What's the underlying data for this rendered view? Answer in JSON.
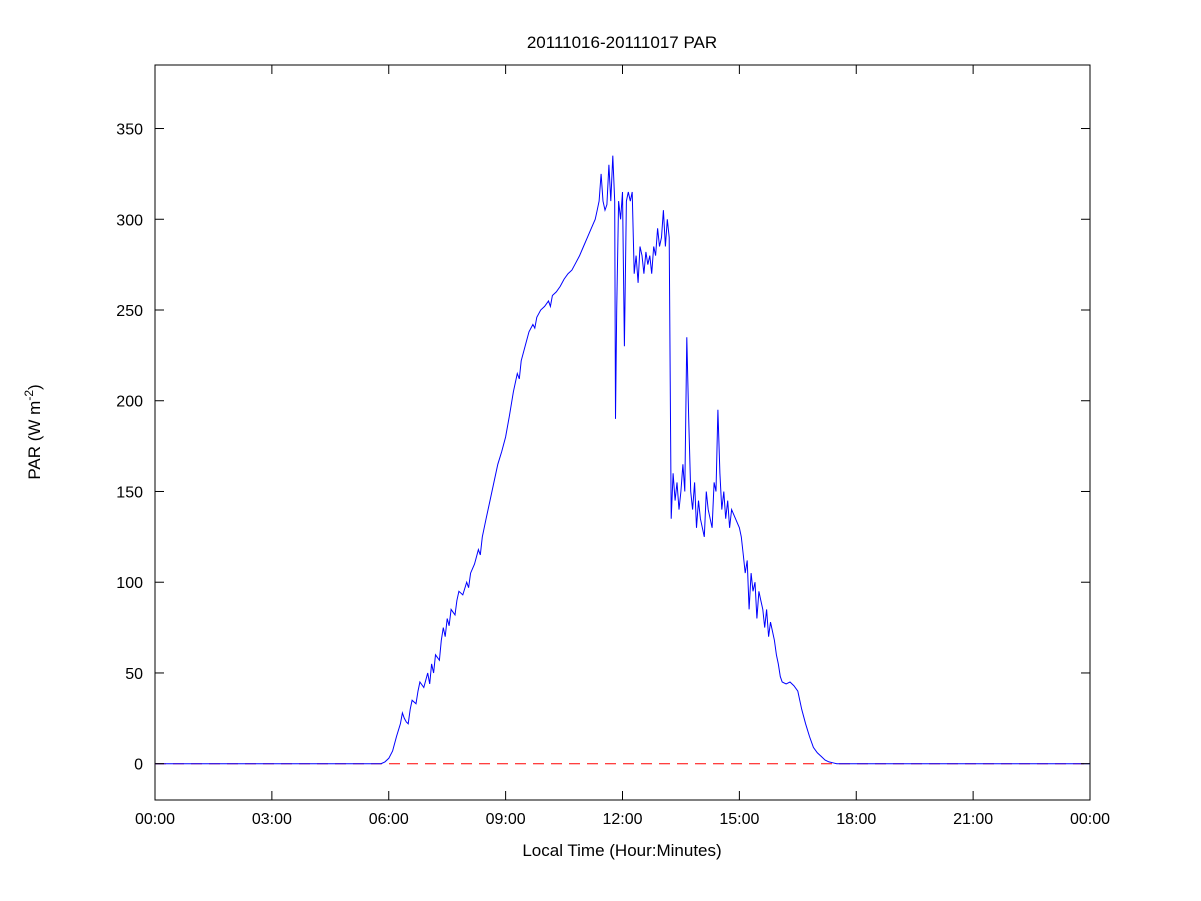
{
  "figure": {
    "title": "20111016-20111017 PAR",
    "xlabel": "Local Time (Hour:Minutes)",
    "ylabel_prefix": "PAR (W m",
    "ylabel_sup": "-2",
    "ylabel_suffix": ")"
  },
  "colors": {
    "series_line": "#0000ff",
    "zero_baseline": "#ff0000",
    "axis": "#000000",
    "background": "#ffffff"
  },
  "chart_data": {
    "type": "line",
    "title": "20111016-20111017 PAR",
    "xlabel": "Local Time (Hour:Minutes)",
    "ylabel": "PAR (W m^-2)",
    "xlim": [
      0,
      24
    ],
    "ylim": [
      -20,
      385
    ],
    "xticks": [
      0,
      3,
      6,
      9,
      12,
      15,
      18,
      21,
      24
    ],
    "xticklabels": [
      "00:00",
      "03:00",
      "06:00",
      "09:00",
      "12:00",
      "15:00",
      "18:00",
      "21:00",
      "00:00"
    ],
    "yticks": [
      0,
      50,
      100,
      150,
      200,
      250,
      300,
      350
    ],
    "grid": false,
    "legend": null,
    "series": [
      {
        "name": "PAR",
        "color": "#0000ff",
        "style": "solid",
        "x": [
          0,
          1,
          2,
          3,
          4,
          5,
          5.5,
          5.8,
          5.9,
          6.0,
          6.1,
          6.2,
          6.3,
          6.35,
          6.4,
          6.45,
          6.5,
          6.55,
          6.6,
          6.7,
          6.75,
          6.8,
          6.9,
          7.0,
          7.05,
          7.1,
          7.15,
          7.2,
          7.3,
          7.35,
          7.4,
          7.45,
          7.5,
          7.55,
          7.6,
          7.7,
          7.75,
          7.8,
          7.9,
          8.0,
          8.05,
          8.1,
          8.2,
          8.3,
          8.35,
          8.4,
          8.5,
          8.6,
          8.7,
          8.8,
          8.9,
          9.0,
          9.1,
          9.2,
          9.3,
          9.35,
          9.4,
          9.5,
          9.6,
          9.7,
          9.75,
          9.8,
          9.9,
          10.0,
          10.1,
          10.15,
          10.2,
          10.3,
          10.4,
          10.5,
          10.6,
          10.7,
          10.8,
          10.9,
          11.0,
          11.1,
          11.2,
          11.3,
          11.35,
          11.4,
          11.45,
          11.5,
          11.55,
          11.6,
          11.65,
          11.7,
          11.75,
          11.8,
          11.82,
          11.85,
          11.9,
          11.95,
          12.0,
          12.05,
          12.1,
          12.15,
          12.2,
          12.25,
          12.3,
          12.35,
          12.4,
          12.45,
          12.5,
          12.55,
          12.6,
          12.65,
          12.7,
          12.75,
          12.8,
          12.85,
          12.9,
          12.95,
          13.0,
          13.05,
          13.1,
          13.15,
          13.2,
          13.25,
          13.3,
          13.35,
          13.4,
          13.45,
          13.5,
          13.55,
          13.6,
          13.65,
          13.7,
          13.75,
          13.8,
          13.85,
          13.9,
          13.95,
          14.0,
          14.1,
          14.15,
          14.2,
          14.3,
          14.35,
          14.4,
          14.45,
          14.5,
          14.55,
          14.6,
          14.65,
          14.7,
          14.75,
          14.8,
          14.9,
          15.0,
          15.05,
          15.1,
          15.15,
          15.2,
          15.25,
          15.3,
          15.35,
          15.4,
          15.45,
          15.5,
          15.55,
          15.6,
          15.65,
          15.7,
          15.75,
          15.8,
          15.9,
          15.95,
          16.0,
          16.05,
          16.1,
          16.2,
          16.3,
          16.4,
          16.5,
          16.6,
          16.7,
          16.8,
          16.9,
          17.0,
          17.1,
          17.2,
          17.3,
          17.4,
          17.5,
          18,
          19,
          20,
          21,
          22,
          23,
          24
        ],
        "y": [
          0,
          0,
          0,
          0,
          0,
          0,
          0,
          0,
          1,
          3,
          7,
          15,
          22,
          28,
          25,
          23,
          22,
          30,
          35,
          33,
          40,
          45,
          42,
          50,
          44,
          55,
          50,
          60,
          57,
          68,
          75,
          70,
          80,
          76,
          85,
          82,
          90,
          95,
          93,
          100,
          97,
          105,
          110,
          118,
          115,
          125,
          135,
          145,
          155,
          165,
          172,
          180,
          192,
          205,
          215,
          212,
          222,
          230,
          238,
          242,
          240,
          246,
          250,
          252,
          255,
          252,
          258,
          260,
          263,
          267,
          270,
          272,
          276,
          280,
          285,
          290,
          295,
          300,
          305,
          310,
          325,
          310,
          305,
          308,
          330,
          310,
          335,
          310,
          190,
          250,
          310,
          300,
          315,
          230,
          310,
          315,
          310,
          315,
          270,
          280,
          265,
          285,
          280,
          270,
          282,
          275,
          280,
          270,
          285,
          280,
          295,
          285,
          290,
          305,
          285,
          300,
          290,
          135,
          160,
          145,
          155,
          140,
          150,
          165,
          150,
          235,
          190,
          150,
          140,
          155,
          130,
          145,
          135,
          125,
          150,
          140,
          130,
          155,
          150,
          195,
          160,
          140,
          150,
          135,
          145,
          130,
          140,
          135,
          130,
          125,
          115,
          105,
          112,
          85,
          105,
          95,
          100,
          80,
          95,
          90,
          85,
          75,
          85,
          70,
          78,
          68,
          60,
          55,
          48,
          45,
          44,
          45,
          43,
          40,
          30,
          22,
          15,
          9,
          6,
          4,
          2,
          1,
          0.5,
          0,
          0,
          0,
          0,
          0,
          0,
          0,
          0
        ]
      },
      {
        "name": "zero-baseline",
        "color": "#ff0000",
        "style": "dashed",
        "x": [
          0,
          24
        ],
        "y": [
          0,
          0
        ]
      }
    ]
  }
}
